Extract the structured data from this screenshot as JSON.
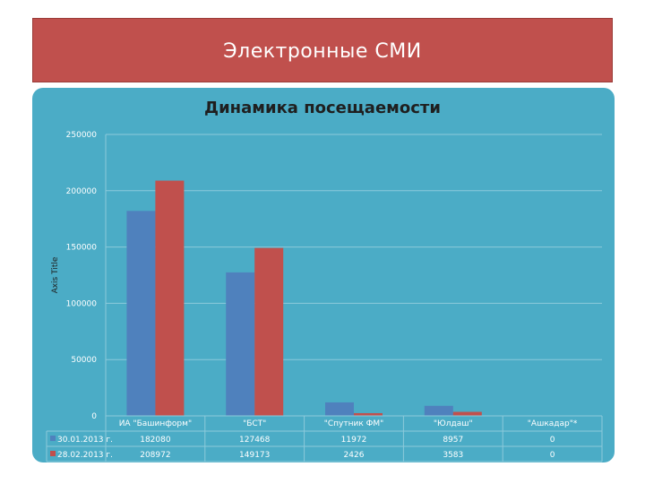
{
  "header": {
    "title": "Электронные СМИ"
  },
  "colors": {
    "banner": "#c0504d",
    "panel": "#4bacc6",
    "series1": "#4f81bd",
    "series2": "#c0504d"
  },
  "chart_data": {
    "type": "bar",
    "title": "Динамика посещаемости",
    "ylabel": "Axis Title",
    "xlabel": "",
    "ylim": [
      0,
      250000
    ],
    "yticks": [
      "0",
      "50000",
      "100000",
      "150000",
      "200000",
      "250000"
    ],
    "grid": true,
    "legend": "data-table",
    "categories": [
      "ИА \"Башинформ\"",
      "\"БСТ\"",
      "\"Спутник ФМ\"",
      "\"Юлдаш\"",
      "\"Ашкадар\"*"
    ],
    "series": [
      {
        "name": "30.01.2013 г.",
        "values": [
          182080,
          127468,
          11972,
          8957,
          0
        ],
        "labels": [
          "182080",
          "127468",
          "11972",
          "8957",
          "0"
        ]
      },
      {
        "name": "28.02.2013 г.",
        "values": [
          208972,
          149173,
          2426,
          3583,
          0
        ],
        "labels": [
          "208972",
          "149173",
          "2426",
          "3583",
          "0"
        ]
      }
    ]
  }
}
